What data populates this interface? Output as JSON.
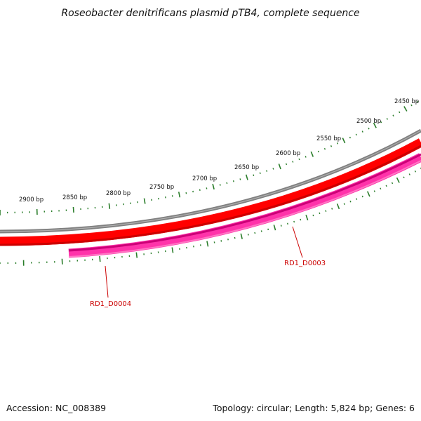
{
  "title": "Roseobacter denitrificans plasmid pTB4, complete sequence",
  "accession_label": "Accession: NC_008389",
  "topology_label": "Topology: circular; Length: 5,824 bp; Genes: 6",
  "colors": {
    "backbone": "#808080",
    "forward_cds": "#ff0000",
    "reverse_cds": "#ff33aa",
    "ticks": "#2a7d2a",
    "gene_label": "#cc0000"
  },
  "scale_labels": [
    {
      "bp": 2450,
      "text": "2450 bp"
    },
    {
      "bp": 2500,
      "text": "2500 bp"
    },
    {
      "bp": 2550,
      "text": "2550 bp"
    },
    {
      "bp": 2600,
      "text": "2600 bp"
    },
    {
      "bp": 2650,
      "text": "2650 bp"
    },
    {
      "bp": 2700,
      "text": "2700 bp"
    },
    {
      "bp": 2750,
      "text": "2750 bp"
    },
    {
      "bp": 2800,
      "text": "2800 bp"
    },
    {
      "bp": 2850,
      "text": "2850 bp"
    },
    {
      "bp": 2900,
      "text": "2900 bp"
    }
  ],
  "genes": [
    {
      "name": "RD1_D0003",
      "strand": "reverse"
    },
    {
      "name": "RD1_D0004",
      "strand": "reverse"
    }
  ]
}
